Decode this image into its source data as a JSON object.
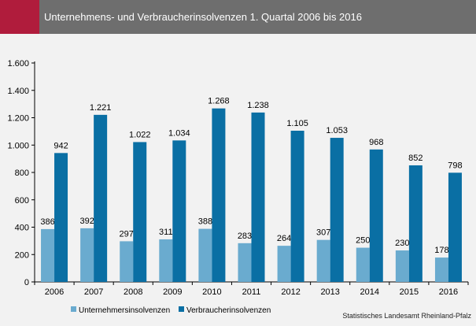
{
  "header": {
    "title": "Unternehmens- und Verbraucherinsolvenzen 1. Quartal 2006 bis 2016",
    "accent_color": "#b01c3c",
    "background_color": "#6e6e6e"
  },
  "source": "Statistisches Landesamt Rheinland-Pfalz",
  "chart_data": {
    "type": "bar",
    "title": "Unternehmens- und Verbraucherinsolvenzen 1. Quartal 2006 bis 2016",
    "xlabel": "",
    "ylabel": "",
    "categories": [
      "2006",
      "2007",
      "2008",
      "2009",
      "2010",
      "2011",
      "2012",
      "2013",
      "2014",
      "2015",
      "2016"
    ],
    "series": [
      {
        "name": "Unternehmersinsolvenzen",
        "color": "#6aabcf",
        "values": [
          386,
          392,
          297,
          311,
          388,
          283,
          264,
          307,
          250,
          230,
          178
        ],
        "labels": [
          "386",
          "392",
          "297",
          "311",
          "388",
          "283",
          "264",
          "307",
          "250",
          "230",
          "178"
        ]
      },
      {
        "name": "Verbraucherinsolvenzen",
        "color": "#0a6fa4",
        "values": [
          942,
          1221,
          1022,
          1034,
          1268,
          1238,
          1105,
          1053,
          968,
          852,
          798
        ],
        "labels": [
          "942",
          "1.221",
          "1.022",
          "1.034",
          "1.268",
          "1.238",
          "1.105",
          "1.053",
          "968",
          "852",
          "798"
        ]
      }
    ],
    "ylim": [
      0,
      1600
    ],
    "yticks": [
      0,
      200,
      400,
      600,
      800,
      1000,
      1200,
      1400,
      1600
    ],
    "ytick_labels": [
      "0",
      "200",
      "400",
      "600",
      "800",
      "1.000",
      "1.200",
      "1.400",
      "1.600"
    ],
    "grid": false,
    "legend": "bottom-left"
  }
}
